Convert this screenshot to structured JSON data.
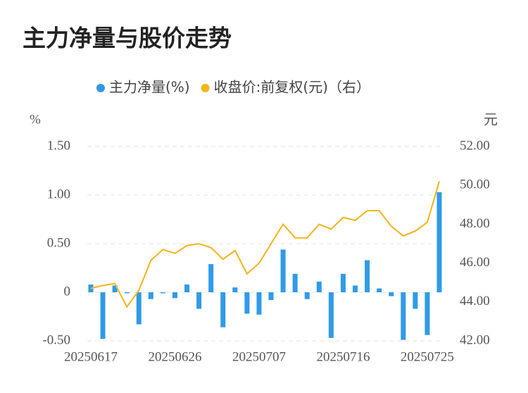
{
  "chart_data": {
    "type": "bar-line",
    "title": "主力净量与股价走势",
    "y_unit": "%",
    "y2_unit": "元",
    "categories": [
      "20250617",
      null,
      null,
      null,
      null,
      null,
      null,
      "20250626",
      null,
      null,
      null,
      null,
      null,
      null,
      "20250707",
      null,
      null,
      null,
      null,
      null,
      null,
      "20250716",
      null,
      null,
      null,
      null,
      null,
      null,
      "20250725",
      null
    ],
    "series": [
      {
        "name": "主力净量(%)",
        "type": "bar",
        "color": "#2f9be8",
        "values": [
          0.08,
          -0.48,
          0.07,
          -0.01,
          -0.33,
          -0.07,
          -0.01,
          -0.06,
          0.08,
          -0.17,
          0.29,
          -0.36,
          0.05,
          -0.22,
          -0.23,
          -0.08,
          0.44,
          0.19,
          -0.07,
          0.11,
          -0.47,
          0.19,
          0.07,
          0.33,
          0.04,
          -0.04,
          -0.49,
          -0.17,
          -0.44,
          1.03
        ]
      },
      {
        "name": "收盘价:前复权(元)（右）",
        "type": "line",
        "axis": "y2",
        "color": "#f4b41a",
        "values": [
          44.7,
          44.85,
          44.95,
          43.75,
          44.6,
          46.15,
          46.7,
          46.5,
          46.9,
          47.0,
          46.8,
          46.2,
          46.65,
          45.45,
          46.0,
          47.0,
          48.0,
          47.3,
          47.3,
          48.0,
          47.75,
          48.35,
          48.2,
          48.7,
          48.7,
          47.9,
          47.4,
          47.65,
          48.1,
          50.2
        ]
      }
    ],
    "ylim": [
      -0.5,
      1.5
    ],
    "yticks": [
      {
        "value": -0.5,
        "label": "-0.50"
      },
      0,
      {
        "value": 0.5,
        "label": "0.50"
      },
      {
        "value": 1,
        "label": "1.00"
      },
      {
        "value": 1.5,
        "label": "1.50"
      }
    ],
    "y2lim": [
      42,
      52
    ],
    "y2ticks": [
      {
        "value": 42,
        "label": "42.00"
      },
      {
        "value": 44,
        "label": "44.00"
      },
      {
        "value": 46,
        "label": "46.00"
      },
      {
        "value": 48,
        "label": "48.00"
      },
      {
        "value": 50,
        "label": "50.00"
      },
      {
        "value": 52,
        "label": "52.00"
      }
    ],
    "grid": true
  }
}
